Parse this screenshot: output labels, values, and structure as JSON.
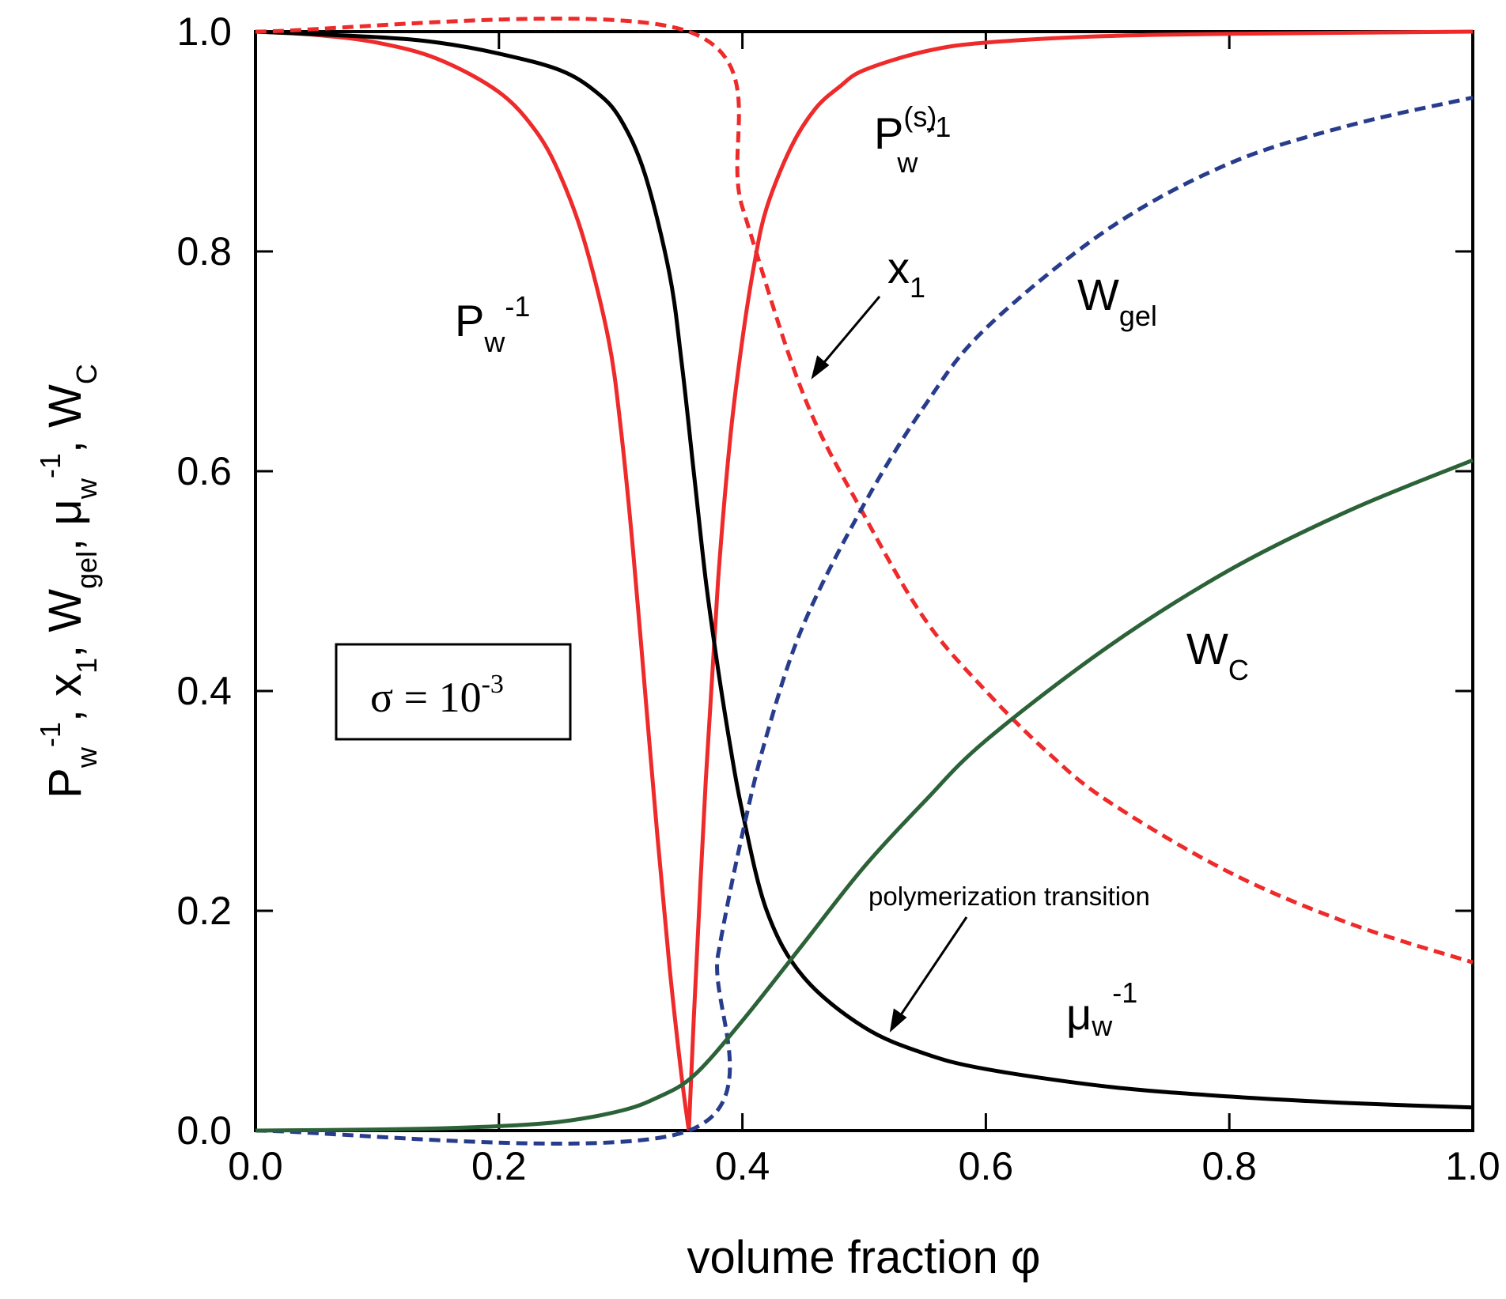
{
  "chart_data": {
    "type": "line",
    "xlabel": "volume fraction  φ",
    "xlim": [
      0,
      1
    ],
    "ylim": [
      0,
      1
    ],
    "xticks": [
      "0.0",
      "0.2",
      "0.4",
      "0.6",
      "0.8",
      "1.0"
    ],
    "yticks": [
      "0.0",
      "0.2",
      "0.4",
      "0.6",
      "0.8",
      "1.0"
    ],
    "ylabel_parts": {
      "p1": "P",
      "p1_sub": "w",
      "p1_sup": "-1",
      "sep1": ",  ",
      "p2": "x",
      "p2_sub": "1",
      "sep2": ",  ",
      "p3": "W",
      "p3_sub": "gel",
      "sep3": ",  ",
      "p4": "μ",
      "p4_sub": "w",
      "p4_sup": "-1",
      "sep4": ",  ",
      "p5": "W",
      "p5_sub": "C"
    },
    "grid": false,
    "sigma_box": {
      "text": "σ = 10",
      "sup": "-3"
    },
    "labels": {
      "pw": {
        "main": "P",
        "sub": "w",
        "sup": "-1"
      },
      "pws": {
        "main": "P",
        "sup1": "(s)",
        "sub": "w",
        "sup2": "-1"
      },
      "x1": {
        "main": "x",
        "sub": "1"
      },
      "wgel": {
        "main": "W",
        "sub": "gel"
      },
      "wc": {
        "main": "W",
        "sub": "C"
      },
      "mu": {
        "main": "μ",
        "sub": "w",
        "sup": "-1"
      }
    },
    "annotation": "polymerization transition",
    "colors": {
      "red": "#ee2a2a",
      "black": "#000000",
      "blue": "#283c8c",
      "green": "#2c6238"
    },
    "series": [
      {
        "id": "Pw_inv",
        "color": "#ee2a2a",
        "style": "solid",
        "x": [
          0,
          0.05,
          0.1,
          0.15,
          0.2,
          0.23,
          0.25,
          0.27,
          0.29,
          0.3,
          0.31,
          0.32,
          0.33,
          0.34,
          0.35,
          0.356
        ],
        "y": [
          1.0,
          0.997,
          0.99,
          0.975,
          0.945,
          0.91,
          0.87,
          0.81,
          0.72,
          0.64,
          0.53,
          0.4,
          0.27,
          0.15,
          0.05,
          0.0
        ]
      },
      {
        "id": "Pw_s_inv",
        "color": "#ee2a2a",
        "style": "solid",
        "x": [
          0.356,
          0.36,
          0.37,
          0.38,
          0.39,
          0.4,
          0.41,
          0.42,
          0.44,
          0.46,
          0.48,
          0.5,
          0.55,
          0.6,
          0.7,
          0.8,
          0.9,
          1.0
        ],
        "y": [
          0.0,
          0.1,
          0.32,
          0.5,
          0.63,
          0.72,
          0.79,
          0.84,
          0.895,
          0.93,
          0.95,
          0.965,
          0.982,
          0.99,
          0.996,
          0.998,
          0.999,
          1.0
        ]
      },
      {
        "id": "mu_inv",
        "color": "#000000",
        "style": "solid",
        "x": [
          0,
          0.1,
          0.15,
          0.2,
          0.25,
          0.28,
          0.3,
          0.32,
          0.34,
          0.35,
          0.36,
          0.37,
          0.38,
          0.39,
          0.4,
          0.42,
          0.45,
          0.5,
          0.55,
          0.6,
          0.7,
          0.8,
          0.9,
          1.0
        ],
        "y": [
          1.0,
          0.995,
          0.99,
          0.98,
          0.965,
          0.945,
          0.92,
          0.87,
          0.78,
          0.7,
          0.6,
          0.5,
          0.42,
          0.35,
          0.29,
          0.2,
          0.14,
          0.094,
          0.07,
          0.056,
          0.04,
          0.031,
          0.025,
          0.021
        ]
      },
      {
        "id": "x1",
        "color": "#ee2a2a",
        "style": "dashed",
        "x": [
          0,
          0.356,
          0.4,
          0.45,
          0.5,
          0.55,
          0.6,
          0.65,
          0.7,
          0.8,
          0.9,
          1.0
        ],
        "y": [
          1.0,
          1.0,
          0.84,
          0.67,
          0.56,
          0.465,
          0.4,
          0.345,
          0.3,
          0.235,
          0.188,
          0.153
        ]
      },
      {
        "id": "W_gel",
        "color": "#283c8c",
        "style": "dashed",
        "x": [
          0,
          0.356,
          0.38,
          0.4,
          0.42,
          0.45,
          0.5,
          0.55,
          0.6,
          0.7,
          0.8,
          0.9,
          1.0
        ],
        "y": [
          0.0,
          0.0,
          0.16,
          0.27,
          0.36,
          0.46,
          0.57,
          0.66,
          0.73,
          0.82,
          0.88,
          0.915,
          0.94
        ]
      },
      {
        "id": "W_C",
        "color": "#2c6238",
        "style": "solid",
        "x": [
          0,
          0.1,
          0.15,
          0.2,
          0.25,
          0.3,
          0.33,
          0.36,
          0.4,
          0.45,
          0.5,
          0.55,
          0.6,
          0.7,
          0.8,
          0.9,
          1.0
        ],
        "y": [
          0.0,
          0.001,
          0.002,
          0.004,
          0.008,
          0.018,
          0.03,
          0.05,
          0.1,
          0.17,
          0.24,
          0.3,
          0.355,
          0.44,
          0.51,
          0.565,
          0.61
        ]
      }
    ]
  }
}
